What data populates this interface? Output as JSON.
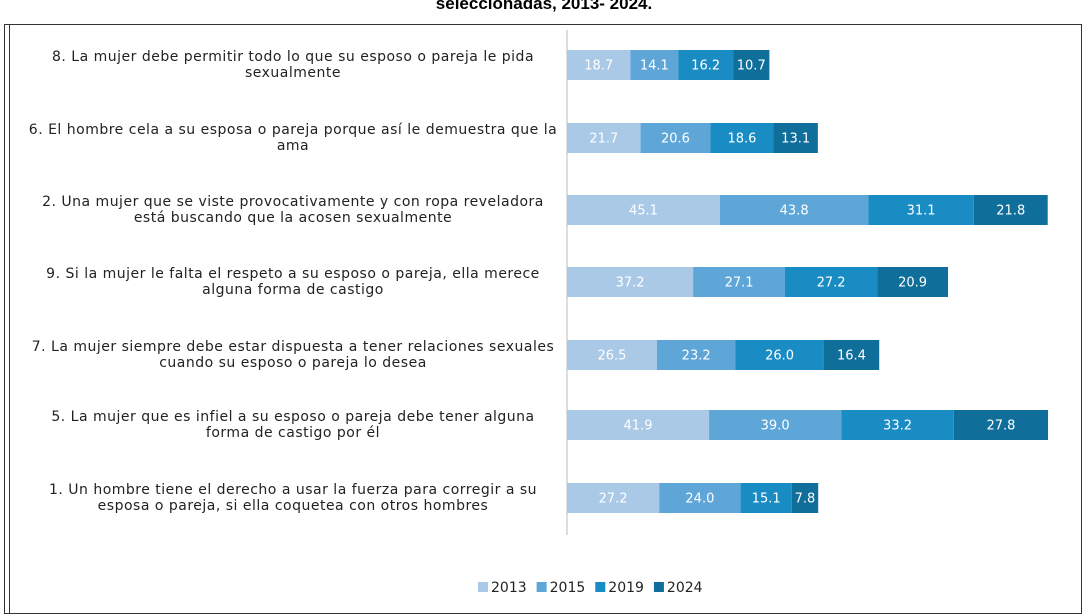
{
  "chart_data": {
    "type": "bar",
    "orientation": "horizontal",
    "stacked": true,
    "title": "seleccionadas, 2013- 2024.",
    "categories": [
      "8. La mujer debe permitir todo lo que su esposo o pareja le pida sexualmente",
      "6. El hombre cela a su esposa o pareja porque así le demuestra que la ama",
      "2. Una mujer que se viste provocativamente y con ropa reveladora está buscando que la acosen sexualmente",
      "9. Si la mujer le falta el respeto a su esposo o pareja, ella merece alguna forma de castigo",
      "7. La mujer siempre debe estar dispuesta a tener relaciones sexuales cuando su esposo o pareja lo desea",
      "5. La mujer que es infiel a su esposo o pareja debe tener alguna forma de castigo por él",
      "1. Un hombre tiene el derecho a usar la fuerza para corregir a su esposa o pareja, si ella coquetea con otros hombres"
    ],
    "series": [
      {
        "name": "2013",
        "color": "#a9c9e6",
        "values": [
          18.7,
          21.7,
          45.1,
          37.2,
          26.5,
          41.9,
          27.2
        ]
      },
      {
        "name": "2015",
        "color": "#5ea6d8",
        "values": [
          14.1,
          20.6,
          43.8,
          27.1,
          23.2,
          39.0,
          24.0
        ],
        "value_labels": [
          "14.1",
          "20.6",
          "43.8",
          "27.1",
          "23.2",
          "39.0",
          "24.0"
        ]
      },
      {
        "name": "2019",
        "color": "#1a8cc4",
        "values": [
          16.2,
          18.6,
          31.1,
          27.2,
          26.0,
          33.2,
          15.1
        ],
        "value_labels": [
          "16.2",
          "18.6",
          "31.1",
          "27.2",
          "26.0",
          "33.2",
          "15.1"
        ]
      },
      {
        "name": "2024",
        "color": "#0f6e9a",
        "values": [
          10.7,
          13.1,
          21.8,
          20.9,
          16.4,
          27.8,
          7.8
        ]
      }
    ],
    "legend": "bottom"
  }
}
